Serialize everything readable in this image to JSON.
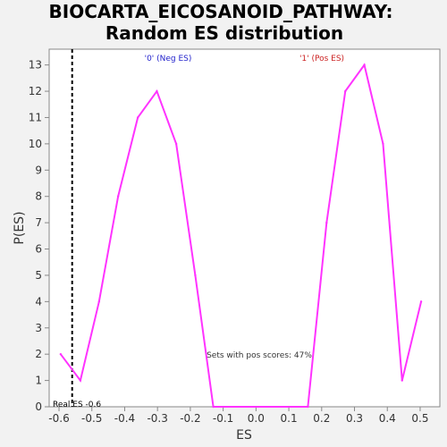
{
  "chart_data": {
    "type": "line",
    "title": [
      "BIOCARTA_EICOSANOID_PATHWAY:",
      "Random ES distribution"
    ],
    "xlabel": "ES",
    "ylabel": "P(ES)",
    "xlim": [
      -0.63,
      0.56
    ],
    "ylim": [
      0,
      13.6
    ],
    "x_ticks": [
      -0.6,
      -0.5,
      -0.4,
      -0.3,
      -0.2,
      -0.1,
      0.0,
      0.1,
      0.2,
      0.3,
      0.4,
      0.5
    ],
    "x_tick_labels": [
      "-0.6",
      "-0.5",
      "-0.4",
      "-0.3",
      "-0.2",
      "-0.1",
      "0.0",
      "0.1",
      "0.2",
      "0.3",
      "0.4",
      "0.5"
    ],
    "y_ticks": [
      0,
      1,
      2,
      3,
      4,
      5,
      6,
      7,
      8,
      9,
      10,
      11,
      12,
      13
    ],
    "y_tick_labels": [
      "0",
      "1",
      "2",
      "3",
      "4",
      "5",
      "6",
      "7",
      "8",
      "9",
      "10",
      "11",
      "12",
      "13"
    ],
    "grid": false,
    "series": [
      {
        "color": "#ff33ff",
        "x": [
          -0.595,
          -0.535,
          -0.478,
          -0.42,
          -0.36,
          -0.302,
          -0.243,
          -0.185,
          -0.13,
          0.158,
          0.215,
          0.272,
          0.33,
          0.387,
          0.445,
          0.503
        ],
        "y": [
          2,
          1,
          4,
          8,
          11,
          12,
          10,
          5,
          0,
          0,
          7,
          12,
          13,
          10,
          1,
          4
        ]
      }
    ],
    "real_es": {
      "x": -0.56,
      "label": "Real ES -0.6",
      "color": "#000000"
    },
    "annotations": {
      "neg": {
        "text": "'0' (Neg ES)",
        "color": "#2222cc"
      },
      "pos": {
        "text": "'1' (Pos ES)",
        "color": "#cc2222"
      },
      "pos_scores": {
        "text": "Sets with pos scores: 47%",
        "color": "#333333"
      }
    }
  }
}
